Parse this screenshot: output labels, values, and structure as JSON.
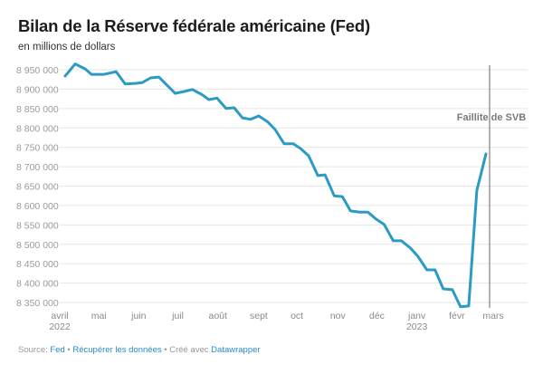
{
  "header": {
    "title": "Bilan de la Réserve fédérale américaine (Fed)",
    "subtitle": "en millions de dollars"
  },
  "footer": {
    "source_label": "Source:",
    "source_link": "Fed",
    "separator": "•",
    "download_link": "Récupérer les données",
    "created_label": "Créé avec",
    "created_link": "Datawrapper"
  },
  "colors": {
    "line": "#2b9bc3",
    "grid": "#e6e6e6",
    "annotation_line": "#888888",
    "link": "#2a8ac9"
  },
  "chart_data": {
    "type": "line",
    "title": "Bilan de la Réserve fédérale américaine (Fed)",
    "subtitle": "en millions de dollars",
    "xlabel": "",
    "ylabel": "",
    "ylim": [
      8350000,
      8950000
    ],
    "yticks": [
      8950000,
      8900000,
      8850000,
      8800000,
      8750000,
      8700000,
      8650000,
      8600000,
      8550000,
      8500000,
      8450000,
      8400000,
      8350000
    ],
    "ytick_labels": [
      "8 950 000",
      "8 900 000",
      "8 850 000",
      "8 800 000",
      "8 750 000",
      "8 700 000",
      "8 650 000",
      "8 600 000",
      "8 550 000",
      "8 500 000",
      "8 450 000",
      "8 400 000",
      "8 350 000"
    ],
    "grid": true,
    "xlim_weeks": [
      0,
      52
    ],
    "xticks": [
      {
        "week": 0,
        "label": "avril",
        "sublabel": "2022"
      },
      {
        "week": 4.3,
        "label": "mai",
        "sublabel": ""
      },
      {
        "week": 8.7,
        "label": "juin",
        "sublabel": ""
      },
      {
        "week": 13.0,
        "label": "juil",
        "sublabel": ""
      },
      {
        "week": 17.4,
        "label": "août",
        "sublabel": ""
      },
      {
        "week": 21.9,
        "label": "sept",
        "sublabel": ""
      },
      {
        "week": 26.1,
        "label": "oct",
        "sublabel": ""
      },
      {
        "week": 30.6,
        "label": "nov",
        "sublabel": ""
      },
      {
        "week": 34.9,
        "label": "déc",
        "sublabel": ""
      },
      {
        "week": 39.3,
        "label": "janv",
        "sublabel": "2023"
      },
      {
        "week": 43.7,
        "label": "févr",
        "sublabel": ""
      },
      {
        "week": 47.7,
        "label": "mars",
        "sublabel": ""
      }
    ],
    "series": [
      {
        "name": "Bilan de la Fed",
        "x_weeks": [
          0.6,
          1.7,
          2.8,
          3.5,
          4.9,
          5.4,
          6.2,
          7.2,
          8.4,
          9.1,
          10.0,
          10.9,
          12.7,
          13.7,
          14.6,
          15.7,
          16.4,
          17.3,
          18.3,
          19.2,
          20.1,
          21.0,
          21.9,
          22.9,
          23.7,
          24.7,
          25.7,
          26.5,
          27.4,
          28.4,
          29.2,
          30.2,
          31.1,
          32.0,
          33.0,
          33.9,
          34.8,
          35.7,
          36.7,
          37.6,
          38.6,
          39.4,
          40.4,
          41.3,
          42.2,
          43.2,
          44.1,
          45.0,
          45.9,
          46.9
        ],
        "values": [
          8934000,
          8965000,
          8952000,
          8938000,
          8938000,
          8941000,
          8945000,
          8913000,
          8915000,
          8917000,
          8929000,
          8931000,
          8889000,
          8894000,
          8899000,
          8885000,
          8873000,
          8877000,
          8850000,
          8852000,
          8826000,
          8822000,
          8831000,
          8815000,
          8796000,
          8759000,
          8759000,
          8747000,
          8728000,
          8677000,
          8679000,
          8625000,
          8623000,
          8586000,
          8583000,
          8583000,
          8565000,
          8551000,
          8509000,
          8509000,
          8490000,
          8469000,
          8434000,
          8434000,
          8385000,
          8383000,
          8339000,
          8341000,
          8639000,
          8733000
        ]
      }
    ],
    "annotations": [
      {
        "type": "vertical-line",
        "week": 47.3,
        "label": "Faillite de SVB"
      }
    ]
  }
}
